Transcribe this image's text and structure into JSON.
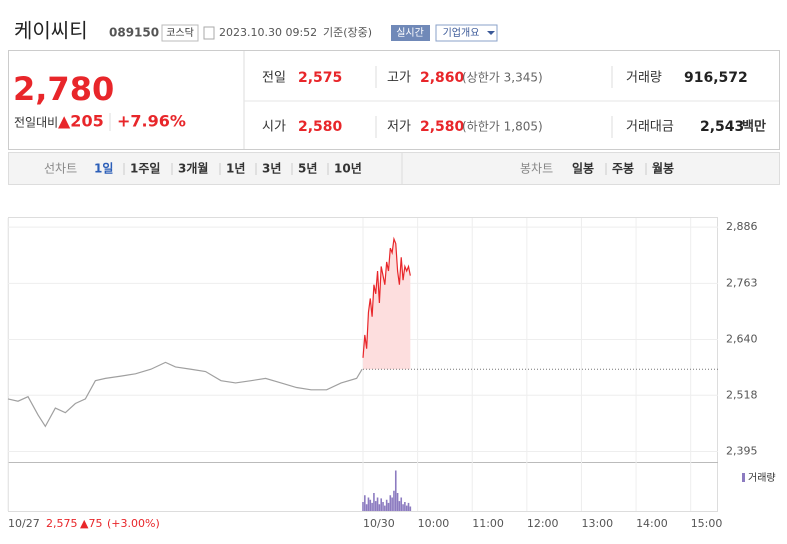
{
  "header": {
    "name": "케이씨티",
    "code": "089150",
    "market": "코스닥",
    "datetime": "2023.10.30 09:52",
    "basis": "기준(장중)",
    "realtime": "실시간",
    "overview": "기업개요"
  },
  "quote": {
    "price": "2,780",
    "change_label": "전일대비",
    "change": "▲205",
    "change_pct": "+7.96%"
  },
  "stats": [
    {
      "label": "전일",
      "value": "2,575"
    },
    {
      "label": "고가",
      "value": "2,860",
      "note": "(상한가 3,345)"
    },
    {
      "label": "거래량",
      "value": "916,572"
    },
    {
      "label": "시가",
      "value": "2,580"
    },
    {
      "label": "저가",
      "value": "2,580",
      "note": "(하한가 1,805)"
    },
    {
      "label": "거래대금",
      "value": "2,543",
      "unit": "백만"
    }
  ],
  "tabs": {
    "line_label": "선차트",
    "line": [
      "1일",
      "1주일",
      "3개월",
      "1년",
      "3년",
      "5년",
      "10년"
    ],
    "active_index": 0,
    "candle_label": "봉차트",
    "candle": [
      "일봉",
      "주봉",
      "월봉"
    ]
  },
  "footer": {
    "price": "2,575",
    "change": "▲75",
    "change_pct": "(+3.00%)"
  },
  "chart_data": {
    "type": "line",
    "xlim": [
      0,
      780
    ],
    "xticks": [
      {
        "value": 0,
        "label": "10/27"
      },
      {
        "value": 390,
        "label": "10/30"
      },
      {
        "value": 450,
        "label": "10:00"
      },
      {
        "value": 510,
        "label": "11:00"
      },
      {
        "value": 570,
        "label": "12:00"
      },
      {
        "value": 630,
        "label": "13:00"
      },
      {
        "value": 690,
        "label": "14:00"
      },
      {
        "value": 750,
        "label": "15:00"
      }
    ],
    "ylim": [
      2372,
      2906
    ],
    "yticks": [
      {
        "value": 2886,
        "label": "2,886"
      },
      {
        "value": 2763,
        "label": "2,763"
      },
      {
        "value": 2640,
        "label": "2,640"
      },
      {
        "value": 2518,
        "label": "2,518"
      },
      {
        "value": 2395,
        "label": "2,395"
      }
    ],
    "grid": true,
    "reference_line": 2575,
    "series": [
      {
        "color": "#a0a0a0",
        "x": [
          0,
          11,
          22,
          33,
          41,
          52,
          63,
          74,
          85,
          96,
          107,
          124,
          140,
          157,
          173,
          184,
          201,
          217,
          234,
          250,
          267,
          283,
          300,
          317,
          333,
          350,
          366,
          383,
          389
        ],
        "values": [
          2510,
          2505,
          2515,
          2475,
          2450,
          2490,
          2480,
          2500,
          2510,
          2550,
          2555,
          2560,
          2565,
          2575,
          2590,
          2580,
          2575,
          2570,
          2550,
          2545,
          2550,
          2555,
          2545,
          2535,
          2530,
          2530,
          2545,
          2555,
          2575
        ]
      },
      {
        "color": "#e8262a",
        "fill": "#fddede",
        "x": [
          390,
          392,
          394,
          396,
          398,
          400,
          402,
          404,
          406,
          408,
          410,
          412,
          414,
          416,
          418,
          420,
          422,
          424,
          426,
          428,
          430,
          432,
          434,
          436,
          438,
          440,
          442
        ],
        "values": [
          2600,
          2650,
          2620,
          2700,
          2730,
          2690,
          2760,
          2740,
          2790,
          2720,
          2800,
          2780,
          2760,
          2810,
          2790,
          2840,
          2830,
          2860,
          2850,
          2790,
          2760,
          2820,
          2770,
          2800,
          2790,
          2800,
          2780
        ]
      }
    ],
    "volume": {
      "label": "거래량",
      "color": "#8c7bc0",
      "lim": [
        0,
        100
      ],
      "x": [
        390,
        392,
        394,
        396,
        398,
        400,
        402,
        404,
        406,
        408,
        410,
        412,
        414,
        416,
        418,
        420,
        422,
        424,
        426,
        428,
        430,
        432,
        434,
        436,
        438,
        440,
        442
      ],
      "values": [
        20,
        35,
        15,
        30,
        25,
        18,
        40,
        22,
        30,
        15,
        28,
        20,
        12,
        25,
        18,
        35,
        30,
        45,
        90,
        40,
        22,
        30,
        15,
        20,
        12,
        18,
        10
      ]
    }
  }
}
